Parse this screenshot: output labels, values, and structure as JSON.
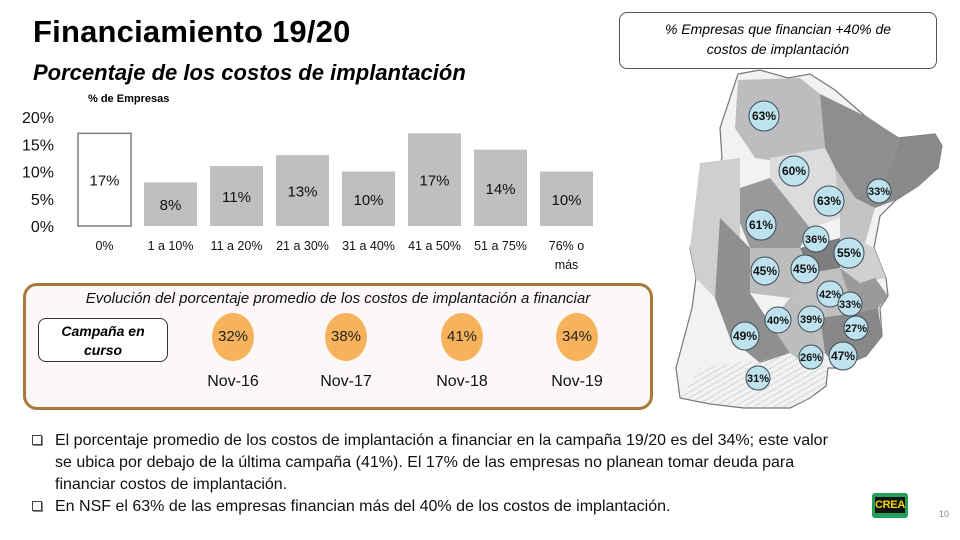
{
  "header": {
    "title": "Financiamiento 19/20",
    "subtitle": "Porcentaje de los costos de implantación"
  },
  "chart_data": {
    "type": "bar",
    "title": "",
    "ylabel": "% de Empresas",
    "xlabel": "",
    "ylim": [
      0,
      20
    ],
    "yticks": [
      "0%",
      "5%",
      "10%",
      "15%",
      "20%"
    ],
    "ytick_values": [
      0,
      5,
      10,
      15,
      20
    ],
    "categories": [
      "0%",
      "1 a 10%",
      "11 a 20%",
      "21 a 30%",
      "31 a 40%",
      "41 a 50%",
      "51 a 75%",
      "76% o más"
    ],
    "values": [
      17,
      8,
      11,
      13,
      10,
      17,
      14,
      10
    ],
    "labels": [
      "17%",
      "8%",
      "11%",
      "13%",
      "10%",
      "17%",
      "14%",
      "10%"
    ],
    "highlight_first": true,
    "grid": false
  },
  "evolution": {
    "title": "Evolución del porcentaje promedio de los costos de implantación a financiar",
    "campaign_label_1": "Campaña en",
    "campaign_label_2": "curso",
    "items": [
      {
        "value": "32%",
        "label": "Nov-16"
      },
      {
        "value": "38%",
        "label": "Nov-17"
      },
      {
        "value": "41%",
        "label": "Nov-18"
      },
      {
        "value": "34%",
        "label": "Nov-19"
      }
    ],
    "circle_color": "#f7b35b",
    "border_color": "#a87a3a"
  },
  "map": {
    "title_line1": "% Empresas que financian +40% de",
    "title_line2": "costos de implantación",
    "bubble_color": "#bfe3ee",
    "regions": [
      "63%",
      "60%",
      "33%",
      "63%",
      "61%",
      "36%",
      "55%",
      "45%",
      "45%",
      "42%",
      "33%",
      "27%",
      "40%",
      "39%",
      "49%",
      "26%",
      "47%",
      "31%"
    ]
  },
  "bullets": [
    {
      "line1": "El porcentaje promedio de los costos de implantación a financiar en la campaña 19/20 es del 34%; este valor",
      "line2": "se ubica por debajo de la última campaña (41%). El 17% de las empresas no planean tomar deuda para",
      "line3": "financiar costos de implantación."
    },
    {
      "line1": "En NSF el 63% de las empresas financian más del 40% de los costos de implantación."
    }
  ],
  "footer": {
    "logo_text": "CREA",
    "page_number": "10"
  }
}
